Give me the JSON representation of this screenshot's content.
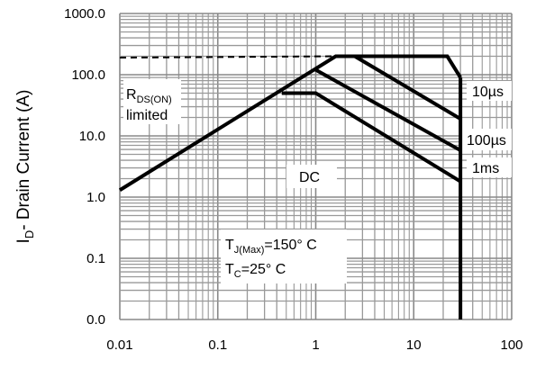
{
  "chart_data": {
    "type": "line",
    "log_x": true,
    "log_y": true,
    "grid": true,
    "y_label": [
      "I",
      "D",
      "- Drain Current (A)"
    ],
    "xlim": [
      0.01,
      100
    ],
    "xticks": [
      0.01,
      0.1,
      1,
      10,
      100
    ],
    "ylim": [
      0.01,
      1000
    ],
    "yticks": [
      {
        "value": 1000,
        "label": "1000.0"
      },
      {
        "value": 100,
        "label": "100.0"
      },
      {
        "value": 10,
        "label": "10.0"
      },
      {
        "value": 1,
        "label": "1.0"
      },
      {
        "value": 0.1,
        "label": "0.1"
      },
      {
        "value": 0.01,
        "label": "0.0"
      }
    ],
    "series": [
      {
        "name": "10µs",
        "color": "#000000",
        "x": [
          0.01,
          1.6,
          22,
          30
        ],
        "y": [
          1.3,
          200,
          200,
          90
        ]
      },
      {
        "name": "100µs",
        "color": "#000000",
        "x": [
          2.5,
          30
        ],
        "y": [
          200,
          19
        ]
      },
      {
        "name": "1ms",
        "color": "#000000",
        "x": [
          1,
          30
        ],
        "y": [
          120,
          5.8
        ]
      },
      {
        "name": "DC",
        "color": "#000000",
        "x": [
          0.45,
          1,
          30
        ],
        "y": [
          50,
          50,
          1.8
        ]
      },
      {
        "color": "#000000",
        "x": [
          30,
          30
        ],
        "y": [
          90,
          0.01
        ]
      },
      {
        "color": "#000000",
        "dashed": true,
        "x": [
          0.01,
          1.6
        ],
        "y": [
          190,
          200
        ]
      }
    ],
    "annotations": [
      {
        "parts": [
          "R",
          "DS(ON)"
        ]
      },
      {
        "parts": [
          "limited"
        ]
      },
      {
        "parts": [
          "T",
          "J(Max)",
          "=150° C"
        ]
      },
      {
        "parts": [
          "T",
          "C",
          "=25° C"
        ]
      }
    ]
  }
}
